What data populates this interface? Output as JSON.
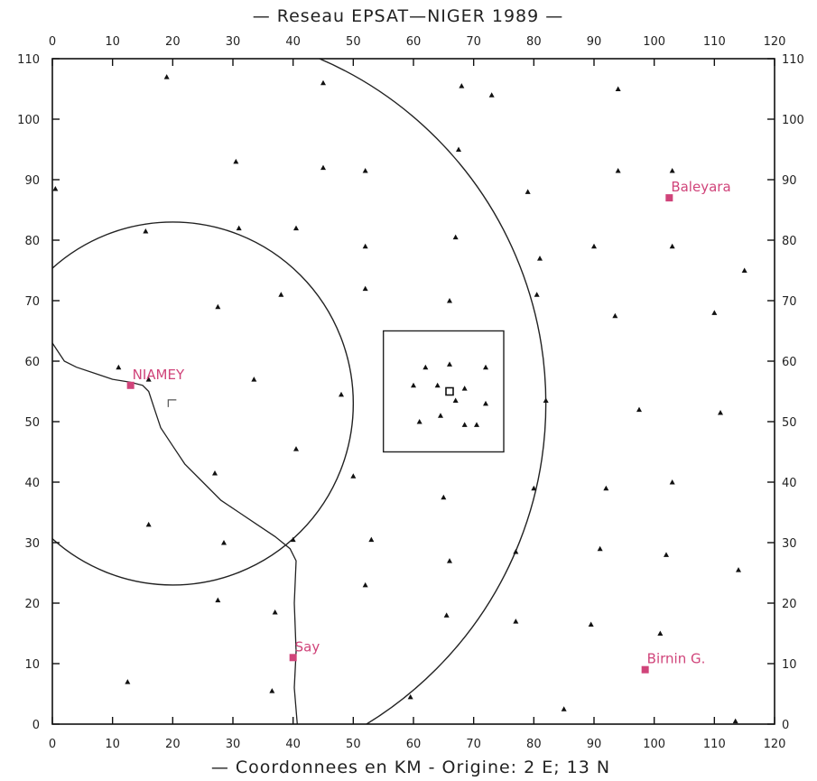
{
  "title": "— Reseau EPSAT—NIGER 1989 —",
  "footer": "— Coordonnees en KM  -  Origine: 2 E; 13 N",
  "colors": {
    "frame": "#111111",
    "city": "#d0447a",
    "gauge": "#111111"
  },
  "axes": {
    "x_ticks": [
      "0",
      "10",
      "20",
      "30",
      "40",
      "50",
      "60",
      "70",
      "80",
      "90",
      "100",
      "110",
      "120"
    ],
    "y_ticks": [
      "0",
      "10",
      "20",
      "30",
      "40",
      "50",
      "60",
      "70",
      "80",
      "90",
      "100",
      "110"
    ],
    "x_range": [
      0,
      120
    ],
    "y_range": [
      0,
      110
    ]
  },
  "cities": [
    {
      "name": "NIAMEY",
      "x": 13,
      "y": 56
    },
    {
      "name": "Baleyara",
      "x": 102.5,
      "y": 87
    },
    {
      "name": "Say",
      "x": 40,
      "y": 11
    },
    {
      "name": "Birnin  G.",
      "x": 98.5,
      "y": 9
    }
  ],
  "circles": [
    {
      "cx": 20,
      "cy": 53,
      "r": 30
    },
    {
      "cx": 20,
      "cy": 53,
      "r": 62
    }
  ],
  "square": {
    "x0": 55,
    "y0": 45,
    "x1": 75,
    "y1": 65
  },
  "river": [
    [
      0,
      63
    ],
    [
      2,
      60
    ],
    [
      4,
      59
    ],
    [
      7,
      58
    ],
    [
      10,
      57
    ],
    [
      13,
      56.5
    ],
    [
      15,
      56
    ],
    [
      16,
      55
    ],
    [
      17,
      52
    ],
    [
      18,
      49
    ],
    [
      20,
      46
    ],
    [
      22,
      43
    ],
    [
      25,
      40
    ],
    [
      28,
      37
    ],
    [
      31,
      35
    ],
    [
      34,
      33
    ],
    [
      37,
      31
    ],
    [
      39.5,
      29
    ],
    [
      40.5,
      27
    ],
    [
      40.2,
      20
    ],
    [
      40.5,
      12
    ],
    [
      40.2,
      6
    ],
    [
      40.7,
      0
    ]
  ],
  "gauges": [
    [
      19,
      107
    ],
    [
      45,
      106
    ],
    [
      68,
      105.5
    ],
    [
      94,
      105
    ],
    [
      73,
      104
    ],
    [
      67.5,
      95
    ],
    [
      30.5,
      93
    ],
    [
      45,
      92
    ],
    [
      52,
      91.5
    ],
    [
      94,
      91.5
    ],
    [
      103,
      91.5
    ],
    [
      79,
      88
    ],
    [
      0.5,
      88.5
    ],
    [
      31,
      82
    ],
    [
      40.5,
      82
    ],
    [
      15.5,
      81.5
    ],
    [
      67,
      80.5
    ],
    [
      52,
      79
    ],
    [
      90,
      79
    ],
    [
      103,
      79
    ],
    [
      81,
      77
    ],
    [
      115,
      75
    ],
    [
      52,
      72
    ],
    [
      38,
      71
    ],
    [
      80.5,
      71
    ],
    [
      66,
      70
    ],
    [
      27.5,
      69
    ],
    [
      110,
      68
    ],
    [
      93.5,
      67.5
    ],
    [
      11,
      59
    ],
    [
      62,
      59
    ],
    [
      66,
      59.5
    ],
    [
      72,
      59
    ],
    [
      16,
      57
    ],
    [
      33.5,
      57
    ],
    [
      60,
      56
    ],
    [
      64,
      56
    ],
    [
      68.5,
      55.5
    ],
    [
      67,
      53.5
    ],
    [
      72,
      53
    ],
    [
      82,
      53.5
    ],
    [
      48,
      54.5
    ],
    [
      64.5,
      51
    ],
    [
      97.5,
      52
    ],
    [
      111,
      51.5
    ],
    [
      61,
      50
    ],
    [
      68.5,
      49.5
    ],
    [
      70.5,
      49.5
    ],
    [
      40.5,
      45.5
    ],
    [
      50,
      41
    ],
    [
      27,
      41.5
    ],
    [
      65,
      37.5
    ],
    [
      80,
      39
    ],
    [
      92,
      39
    ],
    [
      103,
      40
    ],
    [
      16,
      33
    ],
    [
      28.5,
      30
    ],
    [
      40,
      30.5
    ],
    [
      53,
      30.5
    ],
    [
      77,
      28.5
    ],
    [
      91,
      29
    ],
    [
      102,
      28
    ],
    [
      114,
      25.5
    ],
    [
      66,
      27
    ],
    [
      52,
      23
    ],
    [
      27.5,
      20.5
    ],
    [
      37,
      18.5
    ],
    [
      65.5,
      18
    ],
    [
      77,
      17
    ],
    [
      89.5,
      16.5
    ],
    [
      101,
      15
    ],
    [
      12.5,
      7
    ],
    [
      36.5,
      5.5
    ],
    [
      59.5,
      4.5
    ],
    [
      85,
      2.5
    ],
    [
      113.5,
      0.5
    ]
  ],
  "center_marker": {
    "x": 66,
    "y": 55
  },
  "small_marker": {
    "x": 20,
    "y": 53
  }
}
